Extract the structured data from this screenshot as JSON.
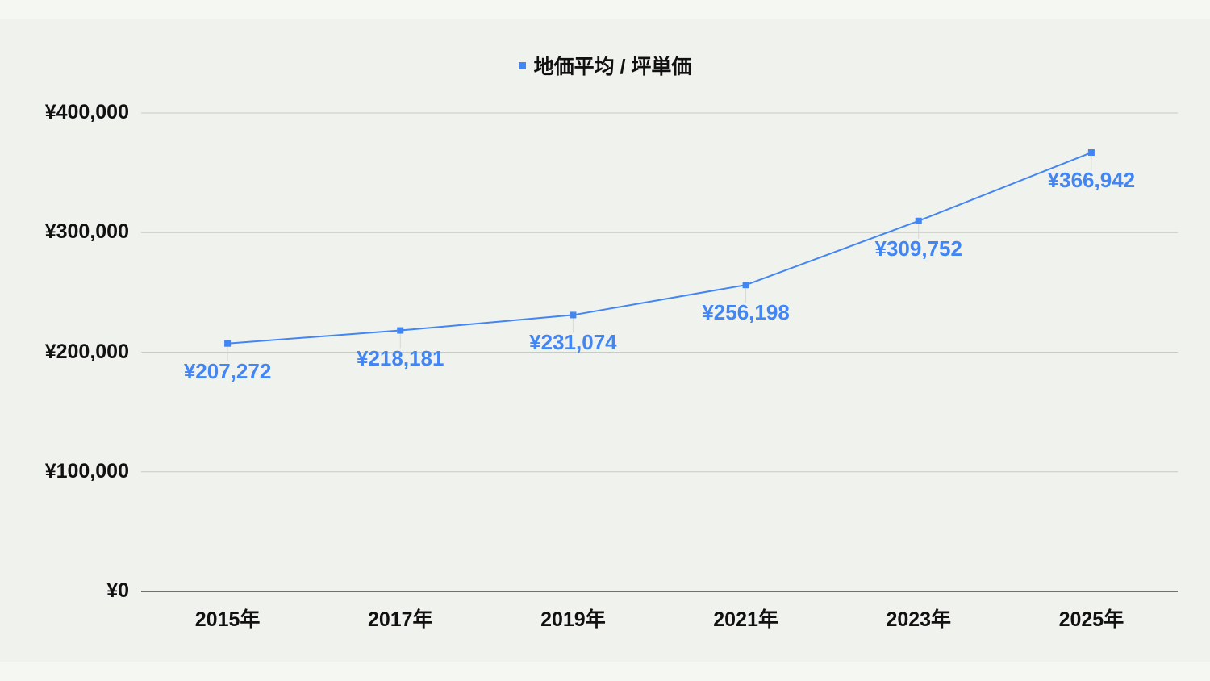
{
  "chart_data": {
    "type": "line",
    "title": "",
    "legend": {
      "position": "top",
      "entries": [
        "地価平均 / 坪単価"
      ]
    },
    "categories": [
      "2015年",
      "2017年",
      "2019年",
      "2021年",
      "2023年",
      "2025年"
    ],
    "series": [
      {
        "name": "地価平均 / 坪単価",
        "color": "#4285f4",
        "values": [
          207272,
          218181,
          231074,
          256198,
          309752,
          366942
        ],
        "labels": [
          "¥207,272",
          "¥218,181",
          "¥231,074",
          "¥256,198",
          "¥309,752",
          "¥366,942"
        ]
      }
    ],
    "xlabel": "",
    "ylabel": "",
    "ylim": [
      0,
      400000
    ],
    "yticks": [
      0,
      100000,
      200000,
      300000,
      400000
    ],
    "ytick_labels": [
      "¥0",
      "¥100,000",
      "¥200,000",
      "¥300,000",
      "¥400,000"
    ],
    "grid": true
  },
  "legend": {
    "label": "地価平均 / 坪単価"
  },
  "colors": {
    "series": "#4285f4",
    "grid": "#c8cac4",
    "axis": "#444444",
    "background": "#f0f2ed"
  }
}
